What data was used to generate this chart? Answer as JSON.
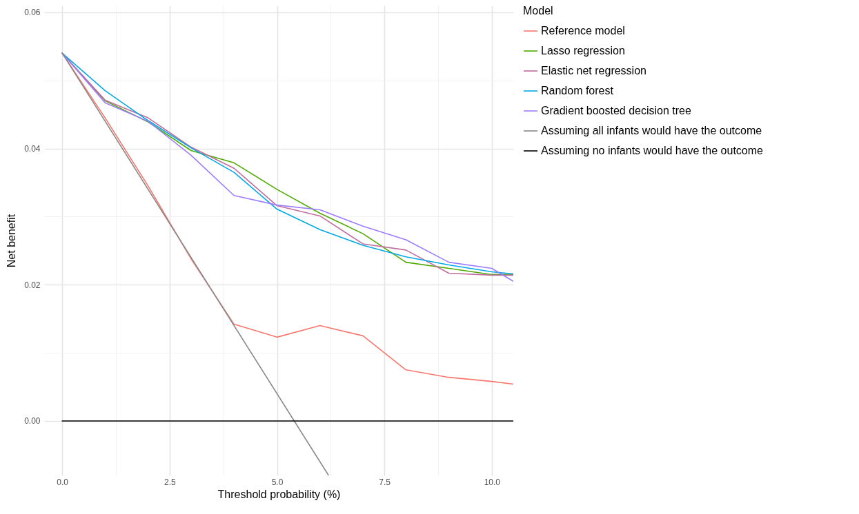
{
  "chart_data": {
    "type": "line",
    "xlabel": "Threshold probability (%)",
    "ylabel": "Net benefit",
    "legend_title": "Model",
    "x": [
      0,
      1,
      2,
      3,
      4,
      5,
      6,
      7,
      8,
      9,
      10,
      10.5
    ],
    "series": [
      {
        "name": "Reference model",
        "color": "#f8766d",
        "values": [
          0.054,
          0.0445,
          0.0345,
          0.0238,
          0.0142,
          0.0123,
          0.014,
          0.0125,
          0.0075,
          0.0064,
          0.0058,
          0.0054
        ]
      },
      {
        "name": "Lasso regression",
        "color": "#4daa00",
        "values": [
          0.054,
          0.047,
          0.0439,
          0.0397,
          0.0379,
          0.034,
          0.0305,
          0.0275,
          0.0233,
          0.0224,
          0.0215,
          0.0215
        ]
      },
      {
        "name": "Elastic net regression",
        "color": "#c06c9e",
        "values": [
          0.054,
          0.0471,
          0.0445,
          0.0402,
          0.0371,
          0.0316,
          0.0301,
          0.026,
          0.0251,
          0.0217,
          0.0214,
          0.0214
        ]
      },
      {
        "name": "Random forest",
        "color": "#00a9e6",
        "values": [
          0.054,
          0.0485,
          0.0441,
          0.0401,
          0.0365,
          0.0311,
          0.0281,
          0.0258,
          0.0241,
          0.0229,
          0.0219,
          0.0216
        ]
      },
      {
        "name": "Gradient boosted decision tree",
        "color": "#9d7cff",
        "values": [
          0.054,
          0.0467,
          0.044,
          0.039,
          0.0331,
          0.0317,
          0.031,
          0.0286,
          0.0266,
          0.0233,
          0.0224,
          0.0205
        ]
      },
      {
        "name": "Assuming all infants would have the outcome",
        "color": "#888888",
        "x": [
          0,
          6.2
        ],
        "values": [
          0.054,
          -0.008
        ]
      },
      {
        "name": "Assuming no infants would have the outcome",
        "color": "#000000",
        "x": [
          0,
          10.5
        ],
        "values": [
          0,
          0
        ]
      }
    ],
    "xlim": [
      -0.42,
      10.5
    ],
    "ylim": [
      -0.008,
      0.061
    ],
    "xticks": [
      {
        "value": 0,
        "label": "0.0"
      },
      2.5,
      {
        "value": 5,
        "label": "5.0"
      },
      7.5,
      {
        "value": 10,
        "label": "10.0"
      }
    ],
    "yticks": [
      {
        "value": 0,
        "label": "0.00"
      },
      0.02,
      0.04,
      0.06
    ],
    "grid": true,
    "legend": "right",
    "line_style": "solid",
    "marker": "none"
  }
}
